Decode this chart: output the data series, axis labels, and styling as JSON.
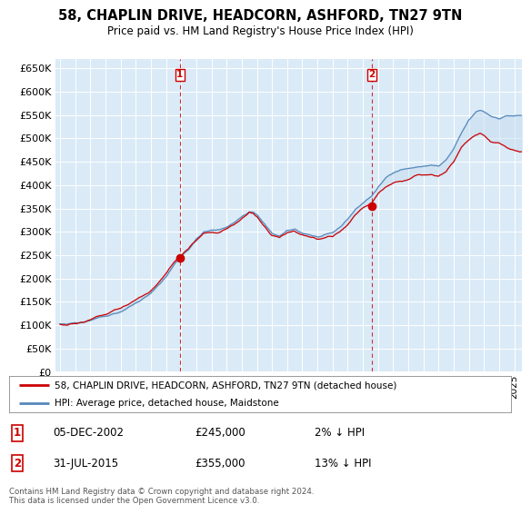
{
  "title": "58, CHAPLIN DRIVE, HEADCORN, ASHFORD, TN27 9TN",
  "subtitle": "Price paid vs. HM Land Registry's House Price Index (HPI)",
  "ylim": [
    0,
    670000
  ],
  "yticks": [
    0,
    50000,
    100000,
    150000,
    200000,
    250000,
    300000,
    350000,
    400000,
    450000,
    500000,
    550000,
    600000,
    650000
  ],
  "xlim_start": 1994.7,
  "xlim_end": 2025.5,
  "bg_color": "#daeaf7",
  "grid_color": "#ffffff",
  "legend_label_red": "58, CHAPLIN DRIVE, HEADCORN, ASHFORD, TN27 9TN (detached house)",
  "legend_label_blue": "HPI: Average price, detached house, Maidstone",
  "footer": "Contains HM Land Registry data © Crown copyright and database right 2024.\nThis data is licensed under the Open Government Licence v3.0.",
  "sale1_date": "05-DEC-2002",
  "sale1_price": 245000,
  "sale1_label": "2% ↓ HPI",
  "sale1_x": 2002.92,
  "sale2_date": "31-JUL-2015",
  "sale2_price": 355000,
  "sale2_label": "13% ↓ HPI",
  "sale2_x": 2015.58,
  "red_color": "#cc0000",
  "blue_color": "#5588bb",
  "fill_color": "#c8ddf0"
}
